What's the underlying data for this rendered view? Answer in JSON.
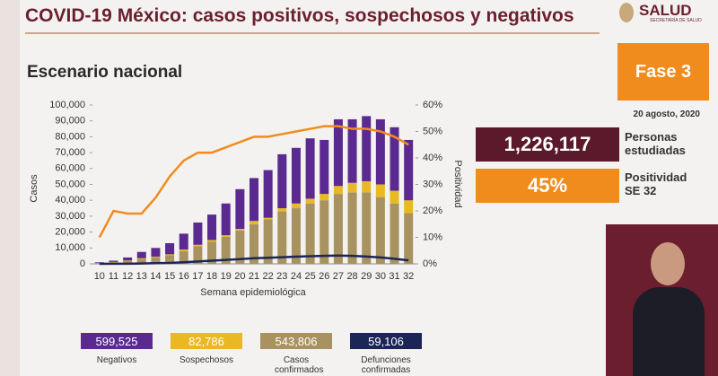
{
  "header": {
    "title": "COVID-19 México: casos positivos, sospechosos y negativos",
    "logo": "SALUD",
    "logo_sub": "SECRETARÍA DE SALUD",
    "subtitle": "Escenario nacional"
  },
  "panel": {
    "phase": "Fase 3",
    "date": "20 agosto, 2020",
    "studied_value": "1,226,117",
    "studied_label": "Personas estudiadas",
    "positivity_value": "45%",
    "positivity_label": "Positividad SE 32"
  },
  "chart_data": {
    "type": "bar",
    "x_label": "Semana epidemiológica",
    "y_label": "Casos",
    "y2_label": "Positividad",
    "categories": [
      "10",
      "11",
      "12",
      "13",
      "14",
      "15",
      "16",
      "17",
      "18",
      "19",
      "20",
      "21",
      "22",
      "23",
      "24",
      "25",
      "26",
      "27",
      "28",
      "29",
      "30",
      "31",
      "32"
    ],
    "series": [
      {
        "name": "Negativos",
        "type": "bar",
        "color": "#5b2a91",
        "values": [
          400,
          800,
          1800,
          4000,
          5500,
          7000,
          10000,
          14000,
          16000,
          20000,
          25000,
          27000,
          30000,
          34000,
          35000,
          38000,
          34000,
          42000,
          40000,
          41000,
          41000,
          40000,
          38000
        ]
      },
      {
        "name": "Sospechosos",
        "type": "bar",
        "color": "#e8b923",
        "values": [
          100,
          200,
          200,
          500,
          500,
          500,
          1000,
          1000,
          1000,
          1000,
          1000,
          2000,
          1000,
          2000,
          3000,
          3000,
          4000,
          5000,
          6000,
          7000,
          8000,
          8000,
          8000
        ]
      },
      {
        "name": "Casos confirmados",
        "type": "bar",
        "color": "#a8925f",
        "values": [
          500,
          1000,
          2000,
          3000,
          4000,
          5500,
          8000,
          11000,
          14000,
          17000,
          21000,
          25000,
          28000,
          33000,
          35000,
          38000,
          40000,
          44000,
          45000,
          45000,
          42000,
          38000,
          32000
        ]
      },
      {
        "name": "Defunciones confirmadas",
        "type": "line",
        "color": "#1c2656",
        "values": [
          0,
          50,
          100,
          200,
          400,
          600,
          1000,
          1500,
          2000,
          2500,
          3000,
          3500,
          3800,
          4200,
          4500,
          4800,
          5000,
          5200,
          5000,
          4600,
          4000,
          3200,
          2200
        ]
      },
      {
        "type": "line",
        "axis": "y2",
        "color": "#f08c1e",
        "values": [
          10,
          20,
          19,
          19,
          25,
          33,
          39,
          42,
          42,
          44,
          46,
          48,
          48,
          49,
          50,
          51,
          52,
          52,
          51,
          51,
          50,
          48,
          45
        ]
      }
    ],
    "legend_totals": [
      "599,525",
      "82,786",
      "543,806",
      "59,106"
    ],
    "ylim": [
      0,
      100000
    ],
    "yticks": [
      0,
      {
        "value": 10000,
        "label": "10,000"
      },
      {
        "value": 20000,
        "label": "20,000"
      },
      {
        "value": 30000,
        "label": "30,000"
      },
      {
        "value": 40000,
        "label": "40,000"
      },
      {
        "value": 50000,
        "label": "50,000"
      },
      {
        "value": 60000,
        "label": "60,000"
      },
      {
        "value": 70000,
        "label": "70,000"
      },
      {
        "value": 80000,
        "label": "80,000"
      },
      {
        "value": 90000,
        "label": "90,000"
      },
      {
        "value": 100000,
        "label": "100,000"
      }
    ],
    "y2lim": [
      0,
      60
    ],
    "y2ticks": [
      {
        "value": 0,
        "label": "0%"
      },
      {
        "value": 10,
        "label": "10%"
      },
      {
        "value": 20,
        "label": "20%"
      },
      {
        "value": 30,
        "label": "30%"
      },
      {
        "value": 40,
        "label": "40%"
      },
      {
        "value": 50,
        "label": "50%"
      },
      {
        "value": 60,
        "label": "60%"
      }
    ]
  }
}
